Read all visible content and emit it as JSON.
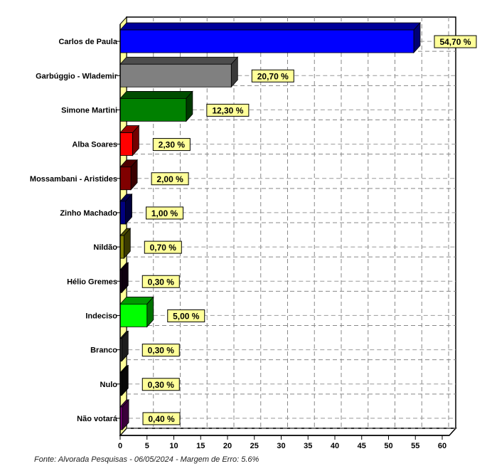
{
  "chart_data": {
    "type": "bar",
    "orientation": "horizontal",
    "categories": [
      "Carlos de Paula",
      "Garbúggio - Wlademir",
      "Simone Martini",
      "Alba Soares",
      "Mossambani - Aristides",
      "Zinho Machado",
      "Nildão",
      "Hélio Gremes",
      "Indeciso",
      "Branco",
      "Nulo",
      "Não votará"
    ],
    "values": [
      54.7,
      20.7,
      12.3,
      2.3,
      2.0,
      1.0,
      0.7,
      0.3,
      5.0,
      0.3,
      0.3,
      0.4
    ],
    "value_labels": [
      "54,70 %",
      "20,70 %",
      "12,30 %",
      "2,30 %",
      "2,00 %",
      "1,00 %",
      "0,70 %",
      "0,30 %",
      "5,00 %",
      "0,30 %",
      "0,30 %",
      "0,40 %"
    ],
    "colors": [
      "#0000ff",
      "#808080",
      "#008000",
      "#ff0000",
      "#800000",
      "#000080",
      "#808000",
      "#200020",
      "#00ff00",
      "#404040",
      "#101010",
      "#800080"
    ],
    "xlim": [
      0,
      60
    ],
    "xticks": [
      "0",
      "5",
      "10",
      "15",
      "20",
      "25",
      "30",
      "35",
      "40",
      "45",
      "50",
      "55",
      "60"
    ],
    "grid": true
  },
  "footer": "Fonte: Alvorada Pesquisas - 06/05/2024 - Margem de Erro: 5.6%"
}
